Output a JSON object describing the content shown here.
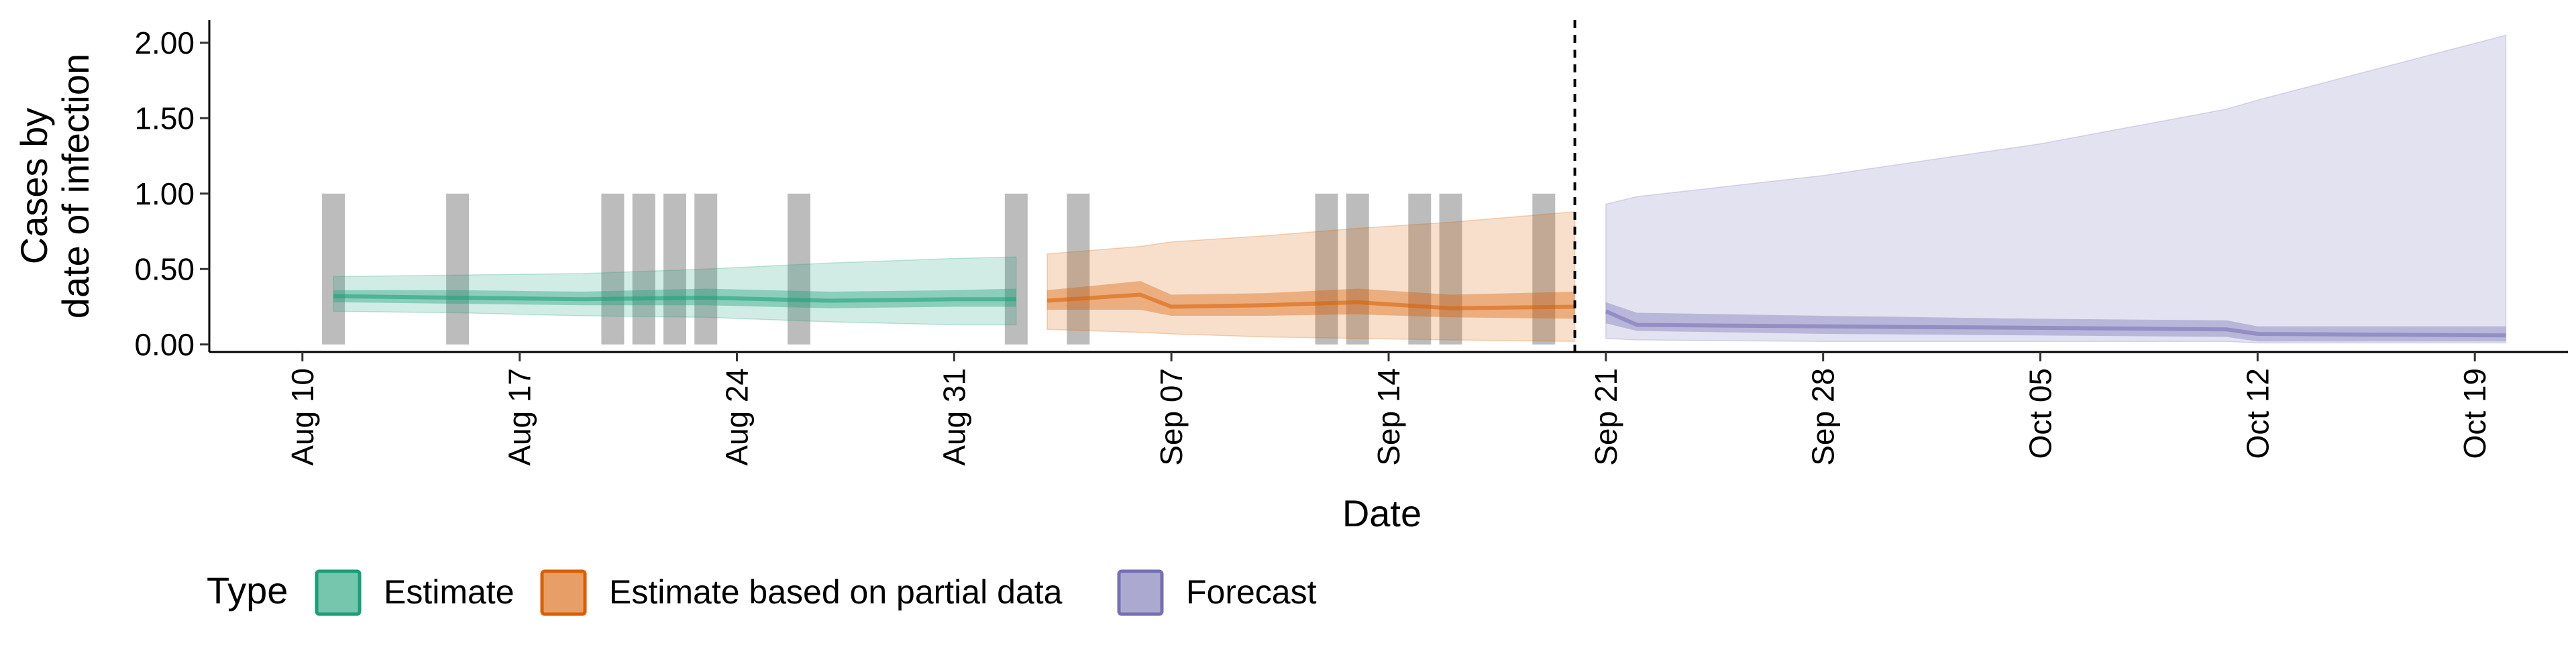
{
  "chart_data": {
    "type": "area",
    "title": "",
    "xlabel": "Date",
    "ylabel": [
      "Cases by",
      "date of infection"
    ],
    "x_ticks": [
      "Aug 10",
      "Aug 17",
      "Aug 24",
      "Aug 31",
      "Sep 07",
      "Sep 14",
      "Sep 21",
      "Sep 28",
      "Oct 05",
      "Oct 12",
      "Oct 19"
    ],
    "y_ticks": [
      "0.00",
      "0.50",
      "1.00",
      "1.50",
      "2.00"
    ],
    "xlim": [
      "2020-08-07",
      "2020-10-22"
    ],
    "ylim": [
      -0.05,
      2.15
    ],
    "forecast_start_line": "2020-09-20",
    "grid": false,
    "legend_position": "bottom-left",
    "legend": {
      "title": "Type",
      "items": [
        {
          "label": "Estimate",
          "color": "#1b9e77"
        },
        {
          "label": "Estimate based on partial data",
          "color": "#d95f02"
        },
        {
          "label": "Forecast",
          "color": "#7570b3"
        }
      ]
    },
    "colors": {
      "Estimate": "#1b9e77",
      "Estimate based on partial data": "#d95f02",
      "Forecast": "#7570b3",
      "case_bars": "#a6a6a6"
    },
    "reported_cases": [
      {
        "date": "2020-08-11",
        "value": 1
      },
      {
        "date": "2020-08-15",
        "value": 1
      },
      {
        "date": "2020-08-20",
        "value": 1
      },
      {
        "date": "2020-08-21",
        "value": 1
      },
      {
        "date": "2020-08-22",
        "value": 1
      },
      {
        "date": "2020-08-23",
        "value": 1
      },
      {
        "date": "2020-08-26",
        "value": 1
      },
      {
        "date": "2020-09-02",
        "value": 1
      },
      {
        "date": "2020-09-04",
        "value": 1
      },
      {
        "date": "2020-09-12",
        "value": 1
      },
      {
        "date": "2020-09-13",
        "value": 1
      },
      {
        "date": "2020-09-15",
        "value": 1
      },
      {
        "date": "2020-09-16",
        "value": 1
      },
      {
        "date": "2020-09-19",
        "value": 1
      }
    ],
    "series": [
      {
        "name": "Estimate",
        "color": "#1b9e77",
        "x": [
          "2020-08-11",
          "2020-08-15",
          "2020-08-19",
          "2020-08-23",
          "2020-08-27",
          "2020-08-31",
          "2020-09-02"
        ],
        "median": [
          0.32,
          0.31,
          0.3,
          0.31,
          0.29,
          0.3,
          0.3
        ],
        "lower_50": [
          0.28,
          0.27,
          0.26,
          0.26,
          0.24,
          0.25,
          0.25
        ],
        "upper_50": [
          0.36,
          0.36,
          0.35,
          0.37,
          0.35,
          0.36,
          0.37
        ],
        "lower_90": [
          0.22,
          0.21,
          0.19,
          0.18,
          0.15,
          0.13,
          0.13
        ],
        "upper_90": [
          0.45,
          0.46,
          0.47,
          0.5,
          0.54,
          0.57,
          0.58
        ]
      },
      {
        "name": "Estimate based on partial data",
        "color": "#d95f02",
        "x": [
          "2020-09-03",
          "2020-09-06",
          "2020-09-07",
          "2020-09-10",
          "2020-09-13",
          "2020-09-16",
          "2020-09-20"
        ],
        "median": [
          0.29,
          0.33,
          0.25,
          0.26,
          0.28,
          0.24,
          0.25
        ],
        "lower_50": [
          0.23,
          0.23,
          0.19,
          0.19,
          0.2,
          0.18,
          0.17
        ],
        "upper_50": [
          0.36,
          0.42,
          0.33,
          0.34,
          0.37,
          0.33,
          0.35
        ],
        "lower_90": [
          0.1,
          0.08,
          0.07,
          0.05,
          0.04,
          0.03,
          0.02
        ],
        "upper_90": [
          0.6,
          0.65,
          0.68,
          0.72,
          0.77,
          0.81,
          0.88
        ]
      },
      {
        "name": "Forecast",
        "color": "#7570b3",
        "x": [
          "2020-09-21",
          "2020-09-22",
          "2020-09-28",
          "2020-10-05",
          "2020-10-11",
          "2020-10-12",
          "2020-10-20"
        ],
        "median": [
          0.22,
          0.13,
          0.12,
          0.11,
          0.1,
          0.07,
          0.06
        ],
        "lower_50": [
          0.14,
          0.09,
          0.07,
          0.06,
          0.05,
          0.02,
          0.02
        ],
        "upper_50": [
          0.28,
          0.21,
          0.19,
          0.17,
          0.16,
          0.12,
          0.12
        ],
        "lower_90": [
          0.04,
          0.03,
          0.02,
          0.02,
          0.02,
          0.01,
          0.01
        ],
        "upper_90": [
          0.93,
          0.98,
          1.12,
          1.33,
          1.56,
          1.62,
          2.05
        ]
      }
    ]
  }
}
